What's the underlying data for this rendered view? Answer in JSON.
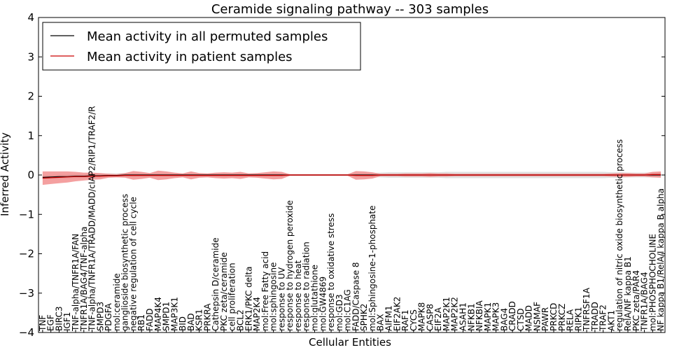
{
  "chart_data": {
    "type": "line",
    "title": "Ceramide signaling pathway -- 303 samples",
    "xlabel": "Cellular Entities",
    "ylabel": "Inferred Activity",
    "ylim": [
      -4,
      4
    ],
    "yticks": [
      -4,
      -3,
      -2,
      -1,
      0,
      1,
      2,
      3,
      4
    ],
    "ytick_labels": [
      "−4",
      "−3",
      "−2",
      "−1",
      "0",
      "1",
      "2",
      "3",
      "4"
    ],
    "legend_position": "top-left",
    "categories": [
      "TNF",
      "EGF",
      "BIRC3",
      "IGF1",
      "TNF-alpha/TNFR1A/FAN",
      "TNFR1A/BAG4/TNF-alpha",
      "TNF-alpha/TNFR1A/TRADD/MADD/cIAP2/RIP1/TRAF2/R",
      "SMPD3",
      "PDGFA",
      "mol:ceramide",
      "ganglioside biosynthetic process",
      "negative regulation of cell cycle",
      "RB1",
      "FADD",
      "MAP4K4",
      "SMPD1",
      "MAP3K1",
      "BID",
      "BAD",
      "KSR1",
      "PRKRA",
      "Cathepsin D/ceramide",
      "PKC zeta/ceramide",
      "cell proliferation",
      "BCL2",
      "ERK1/PKC delta",
      "MAP2K4",
      "mol:Free Fatty acid",
      "mol:sphingosine",
      "response to UV",
      "response to hydrogen peroxide",
      "response to heat",
      "response to radiation",
      "mol:glutathione",
      "mol:GW4869",
      "response to oxidative stress",
      "mol:GD3",
      "mol:C1AG",
      "FADD/Caspase 8",
      "SPHK2",
      "mol:Sphingosine-1-phosphate",
      "BAX",
      "AIFM1",
      "EIF2AK2",
      "RAF1",
      "CYCS",
      "MAPK8",
      "CASP8",
      "EIF2A",
      "MAP2K1",
      "MAP2K2",
      "ASAH1",
      "NFKB1",
      "NFKBIA",
      "MAPK1",
      "MAPK3",
      "BAG4",
      "CRADD",
      "CTSD",
      "MADD",
      "NSMAF",
      "PAWR",
      "PRKCD",
      "PRKCZ",
      "RELA",
      "RIPK1",
      "TNFRSF1A",
      "TRADD",
      "TRAF2",
      "AKT1",
      "regulation of nitric oxide biosynthetic process",
      "RelA/NF kappa B1",
      "PKC zeta/PAR4",
      "TNFR1A/BAG4",
      "mol:PHOSPHOCHOLINE",
      "NF kappa B1/RelA/I kappa B alpha"
    ],
    "series": [
      {
        "name": "Mean activity in all permuted samples",
        "color": "#000000",
        "values": [
          -0.06,
          -0.05,
          -0.04,
          -0.04,
          -0.03,
          -0.03,
          -0.02,
          -0.02,
          -0.01,
          -0.01,
          0,
          0,
          0,
          0,
          0,
          0,
          0,
          0,
          0,
          0,
          0,
          0,
          0,
          0,
          0,
          0,
          0,
          0,
          0,
          0,
          0,
          0,
          0,
          0,
          0,
          0,
          0,
          0,
          0,
          0,
          0,
          0,
          0,
          0,
          0,
          0,
          0,
          0,
          0,
          0,
          0,
          0,
          0,
          0,
          0,
          0,
          0,
          0,
          0,
          0,
          0,
          0,
          0,
          0,
          0,
          0,
          0,
          0,
          0,
          0,
          0,
          0,
          0,
          0,
          0,
          0
        ],
        "band_half_width": [
          0.05,
          0.05,
          0.05,
          0.05,
          0.05,
          0.05,
          0.05,
          0.05,
          0.05,
          0.05,
          0.05,
          0.05,
          0.04,
          0.04,
          0.04,
          0.04,
          0.04,
          0.04,
          0.04,
          0.04,
          0.04,
          0.04,
          0.04,
          0.04,
          0.04,
          0.04,
          0.04,
          0.04,
          0.04,
          0.04,
          0.02,
          0.02,
          0.02,
          0.02,
          0.02,
          0.02,
          0.02,
          0.02,
          0.05,
          0.05,
          0.05,
          0.06,
          0.07,
          0.07,
          0.07,
          0.07,
          0.07,
          0.07,
          0.07,
          0.08,
          0.08,
          0.08,
          0.08,
          0.08,
          0.08,
          0.08,
          0.08,
          0.08,
          0.08,
          0.08,
          0.08,
          0.08,
          0.08,
          0.08,
          0.08,
          0.08,
          0.08,
          0.08,
          0.08,
          0.07,
          0.07,
          0.06,
          0.06,
          0.06,
          0.06,
          0.06
        ],
        "band_color": "#dddddd"
      },
      {
        "name": "Mean activity in patient samples",
        "color": "#cc0000",
        "values": [
          -0.08,
          -0.07,
          -0.06,
          -0.05,
          -0.04,
          -0.04,
          -0.03,
          -0.03,
          -0.02,
          -0.02,
          -0.01,
          -0.01,
          -0.01,
          -0.01,
          -0.01,
          -0.01,
          -0.01,
          -0.01,
          -0.01,
          -0.01,
          -0.01,
          -0.01,
          -0.01,
          -0.01,
          -0.01,
          -0.01,
          -0.01,
          -0.01,
          -0.01,
          -0.01,
          0,
          0,
          0,
          0,
          0,
          0,
          0,
          0,
          -0.01,
          -0.01,
          -0.01,
          0,
          0,
          0,
          0,
          0,
          0,
          0,
          0,
          0,
          0,
          0,
          0,
          0,
          0,
          0,
          0,
          0,
          0,
          0,
          0,
          0,
          0,
          0,
          0,
          0,
          0,
          0,
          0,
          0,
          0,
          0,
          0,
          0,
          0.01,
          0.01
        ],
        "band_half_width": [
          0.17,
          0.16,
          0.15,
          0.14,
          0.12,
          0.1,
          0.09,
          0.08,
          0.05,
          0.04,
          0.06,
          0.11,
          0.09,
          0.06,
          0.12,
          0.1,
          0.07,
          0.05,
          0.1,
          0.06,
          0.05,
          0.07,
          0.08,
          0.07,
          0.09,
          0.05,
          0.06,
          0.08,
          0.1,
          0.09,
          0.02,
          0.02,
          0.02,
          0.02,
          0.02,
          0.02,
          0.02,
          0.02,
          0.11,
          0.1,
          0.08,
          0.03,
          0.03,
          0.03,
          0.04,
          0.04,
          0.04,
          0.05,
          0.04,
          0.04,
          0.03,
          0.03,
          0.03,
          0.03,
          0.03,
          0.03,
          0.03,
          0.03,
          0.03,
          0.03,
          0.03,
          0.03,
          0.03,
          0.03,
          0.03,
          0.03,
          0.03,
          0.03,
          0.03,
          0.04,
          0.05,
          0.05,
          0.04,
          0.04,
          0.07,
          0.08
        ],
        "band_color": "#f08080"
      }
    ]
  }
}
